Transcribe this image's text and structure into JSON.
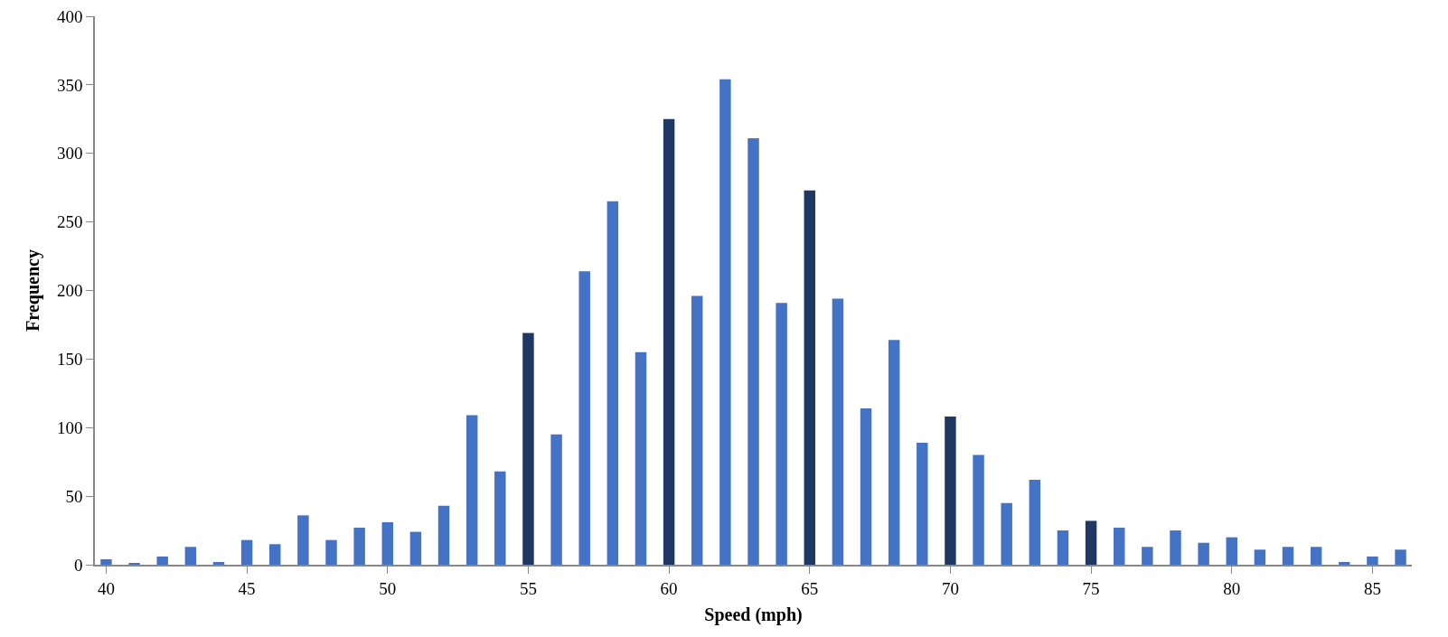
{
  "chart_data": {
    "type": "bar",
    "xlabel": "Speed (mph)",
    "ylabel": "Frequency",
    "x": [
      40,
      41,
      42,
      43,
      44,
      45,
      46,
      47,
      48,
      49,
      50,
      51,
      52,
      53,
      54,
      55,
      56,
      57,
      58,
      59,
      60,
      61,
      62,
      63,
      64,
      65,
      66,
      67,
      68,
      69,
      70,
      71,
      72,
      73,
      74,
      75,
      76,
      77,
      78,
      79,
      80,
      81,
      82,
      83,
      84,
      85,
      86
    ],
    "values": [
      4,
      1,
      6,
      13,
      2,
      18,
      15,
      36,
      18,
      27,
      31,
      24,
      43,
      109,
      68,
      169,
      95,
      214,
      265,
      155,
      325,
      196,
      354,
      311,
      191,
      273,
      194,
      114,
      164,
      89,
      108,
      80,
      45,
      62,
      25,
      32,
      27,
      13,
      25,
      16,
      20,
      11,
      13,
      13,
      2,
      6,
      11
    ],
    "colors": [
      "#4472c4",
      "#4472c4",
      "#4472c4",
      "#4472c4",
      "#4472c4",
      "#4472c4",
      "#4472c4",
      "#4472c4",
      "#4472c4",
      "#4472c4",
      "#4472c4",
      "#4472c4",
      "#4472c4",
      "#4472c4",
      "#4472c4",
      "#1f3864",
      "#4472c4",
      "#4472c4",
      "#4472c4",
      "#4472c4",
      "#1f3864",
      "#4472c4",
      "#4472c4",
      "#4472c4",
      "#4472c4",
      "#1f3864",
      "#4472c4",
      "#4472c4",
      "#4472c4",
      "#4472c4",
      "#1f3864",
      "#4472c4",
      "#4472c4",
      "#4472c4",
      "#4472c4",
      "#1f3864",
      "#4472c4",
      "#4472c4",
      "#4472c4",
      "#4472c4",
      "#4472c4",
      "#4472c4",
      "#4472c4",
      "#4472c4",
      "#4472c4",
      "#4472c4",
      "#4472c4"
    ],
    "xlim": [
      39.6,
      86.4
    ],
    "xticks": [
      40,
      45,
      50,
      55,
      60,
      65,
      70,
      75,
      80,
      85
    ],
    "ylim": [
      0,
      400
    ],
    "yticks": [
      0,
      50,
      100,
      150,
      200,
      250,
      300,
      350,
      400
    ],
    "grid": false
  }
}
